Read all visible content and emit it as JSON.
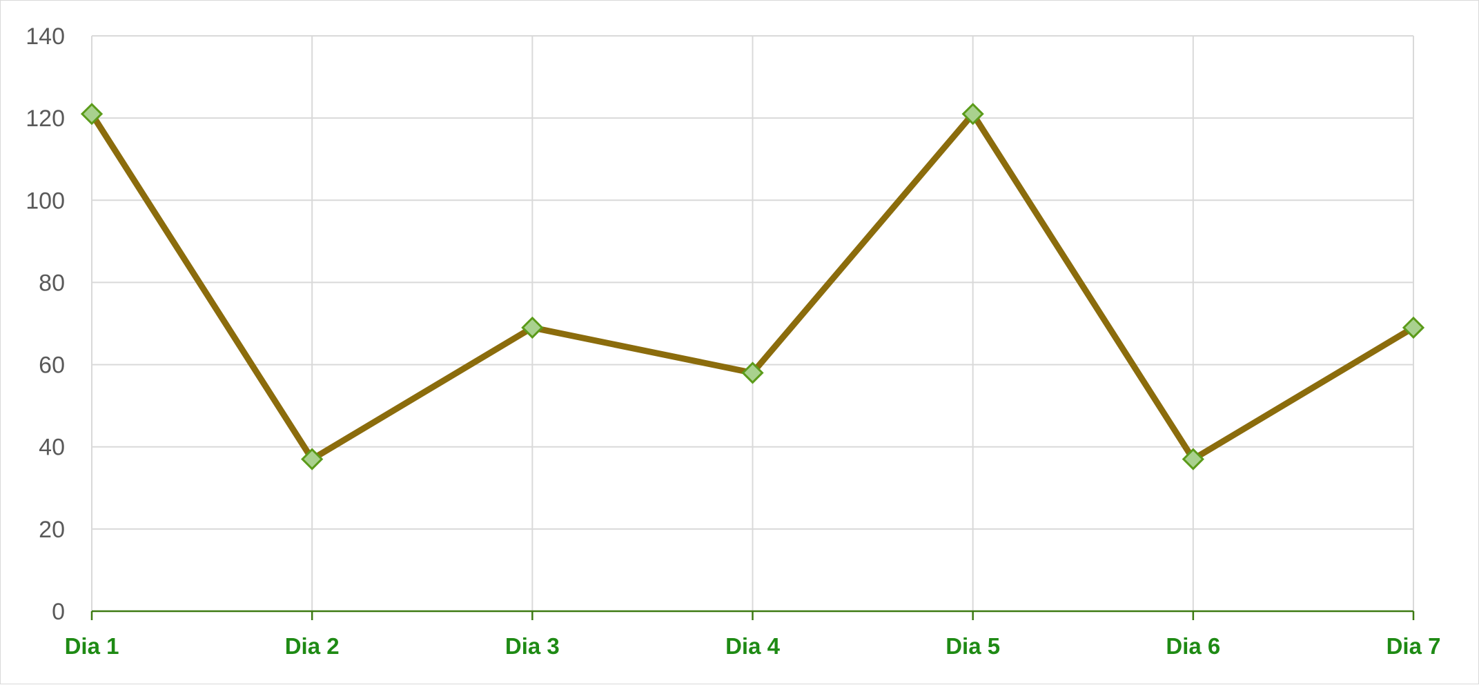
{
  "chart_data": {
    "type": "line",
    "categories": [
      "Dia 1",
      "Dia 2",
      "Dia 3",
      "Dia 4",
      "Dia 5",
      "Dia 6",
      "Dia 7"
    ],
    "series": [
      {
        "values": [
          121,
          37,
          69,
          58,
          121,
          37,
          69
        ]
      }
    ],
    "title": "",
    "xlabel": "",
    "ylabel": "",
    "ylim": [
      0,
      140
    ],
    "yticks": [
      0,
      20,
      40,
      60,
      80,
      100,
      120,
      140
    ],
    "grid": true,
    "legend": "none",
    "marker": "diamond",
    "colors": {
      "line": "#8B6C0C",
      "marker_fill": "#A9D18E",
      "marker_edge": "#5B9B1A",
      "x_axis": "#3D7A12",
      "x_label": "#1E8A14",
      "y_label": "#595959",
      "grid": "#D9D9D9"
    }
  }
}
